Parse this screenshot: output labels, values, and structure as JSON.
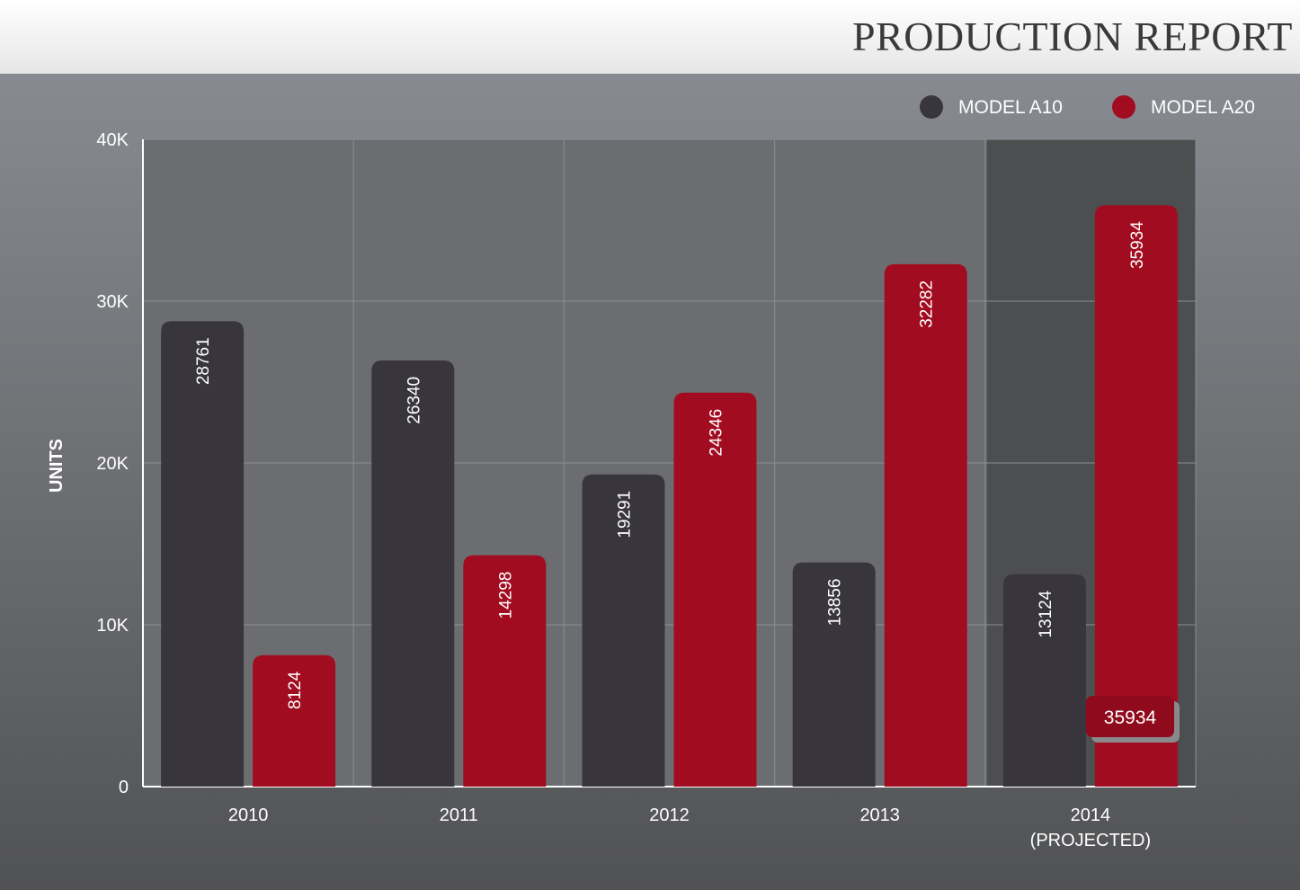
{
  "header": {
    "title": "PRODUCTION REPORT"
  },
  "colors": {
    "model_a10": "#38363c",
    "model_a20": "#a20c20",
    "plot_bg": "#6c6d70",
    "projected_bg": "#4d4e50",
    "grid": "#8d8e92"
  },
  "chart_data": {
    "type": "bar",
    "categories": [
      "2010",
      "2011",
      "2012",
      "2013",
      "2014\n(PROJECTED)"
    ],
    "series": [
      {
        "name": "MODEL A10",
        "values": [
          28761,
          26340,
          19291,
          13856,
          13124
        ]
      },
      {
        "name": "MODEL A20",
        "values": [
          8124,
          14298,
          24346,
          32282,
          35934
        ]
      }
    ],
    "xlabel": "",
    "ylabel": "UNITS",
    "ylim": [
      0,
      40000
    ],
    "yticks": [
      "0",
      "10K",
      "20K",
      "30K",
      "40K"
    ],
    "grid": true,
    "legend": "top-right",
    "highlighted_category": "2014\n(PROJECTED)",
    "tooltip": "35934"
  }
}
